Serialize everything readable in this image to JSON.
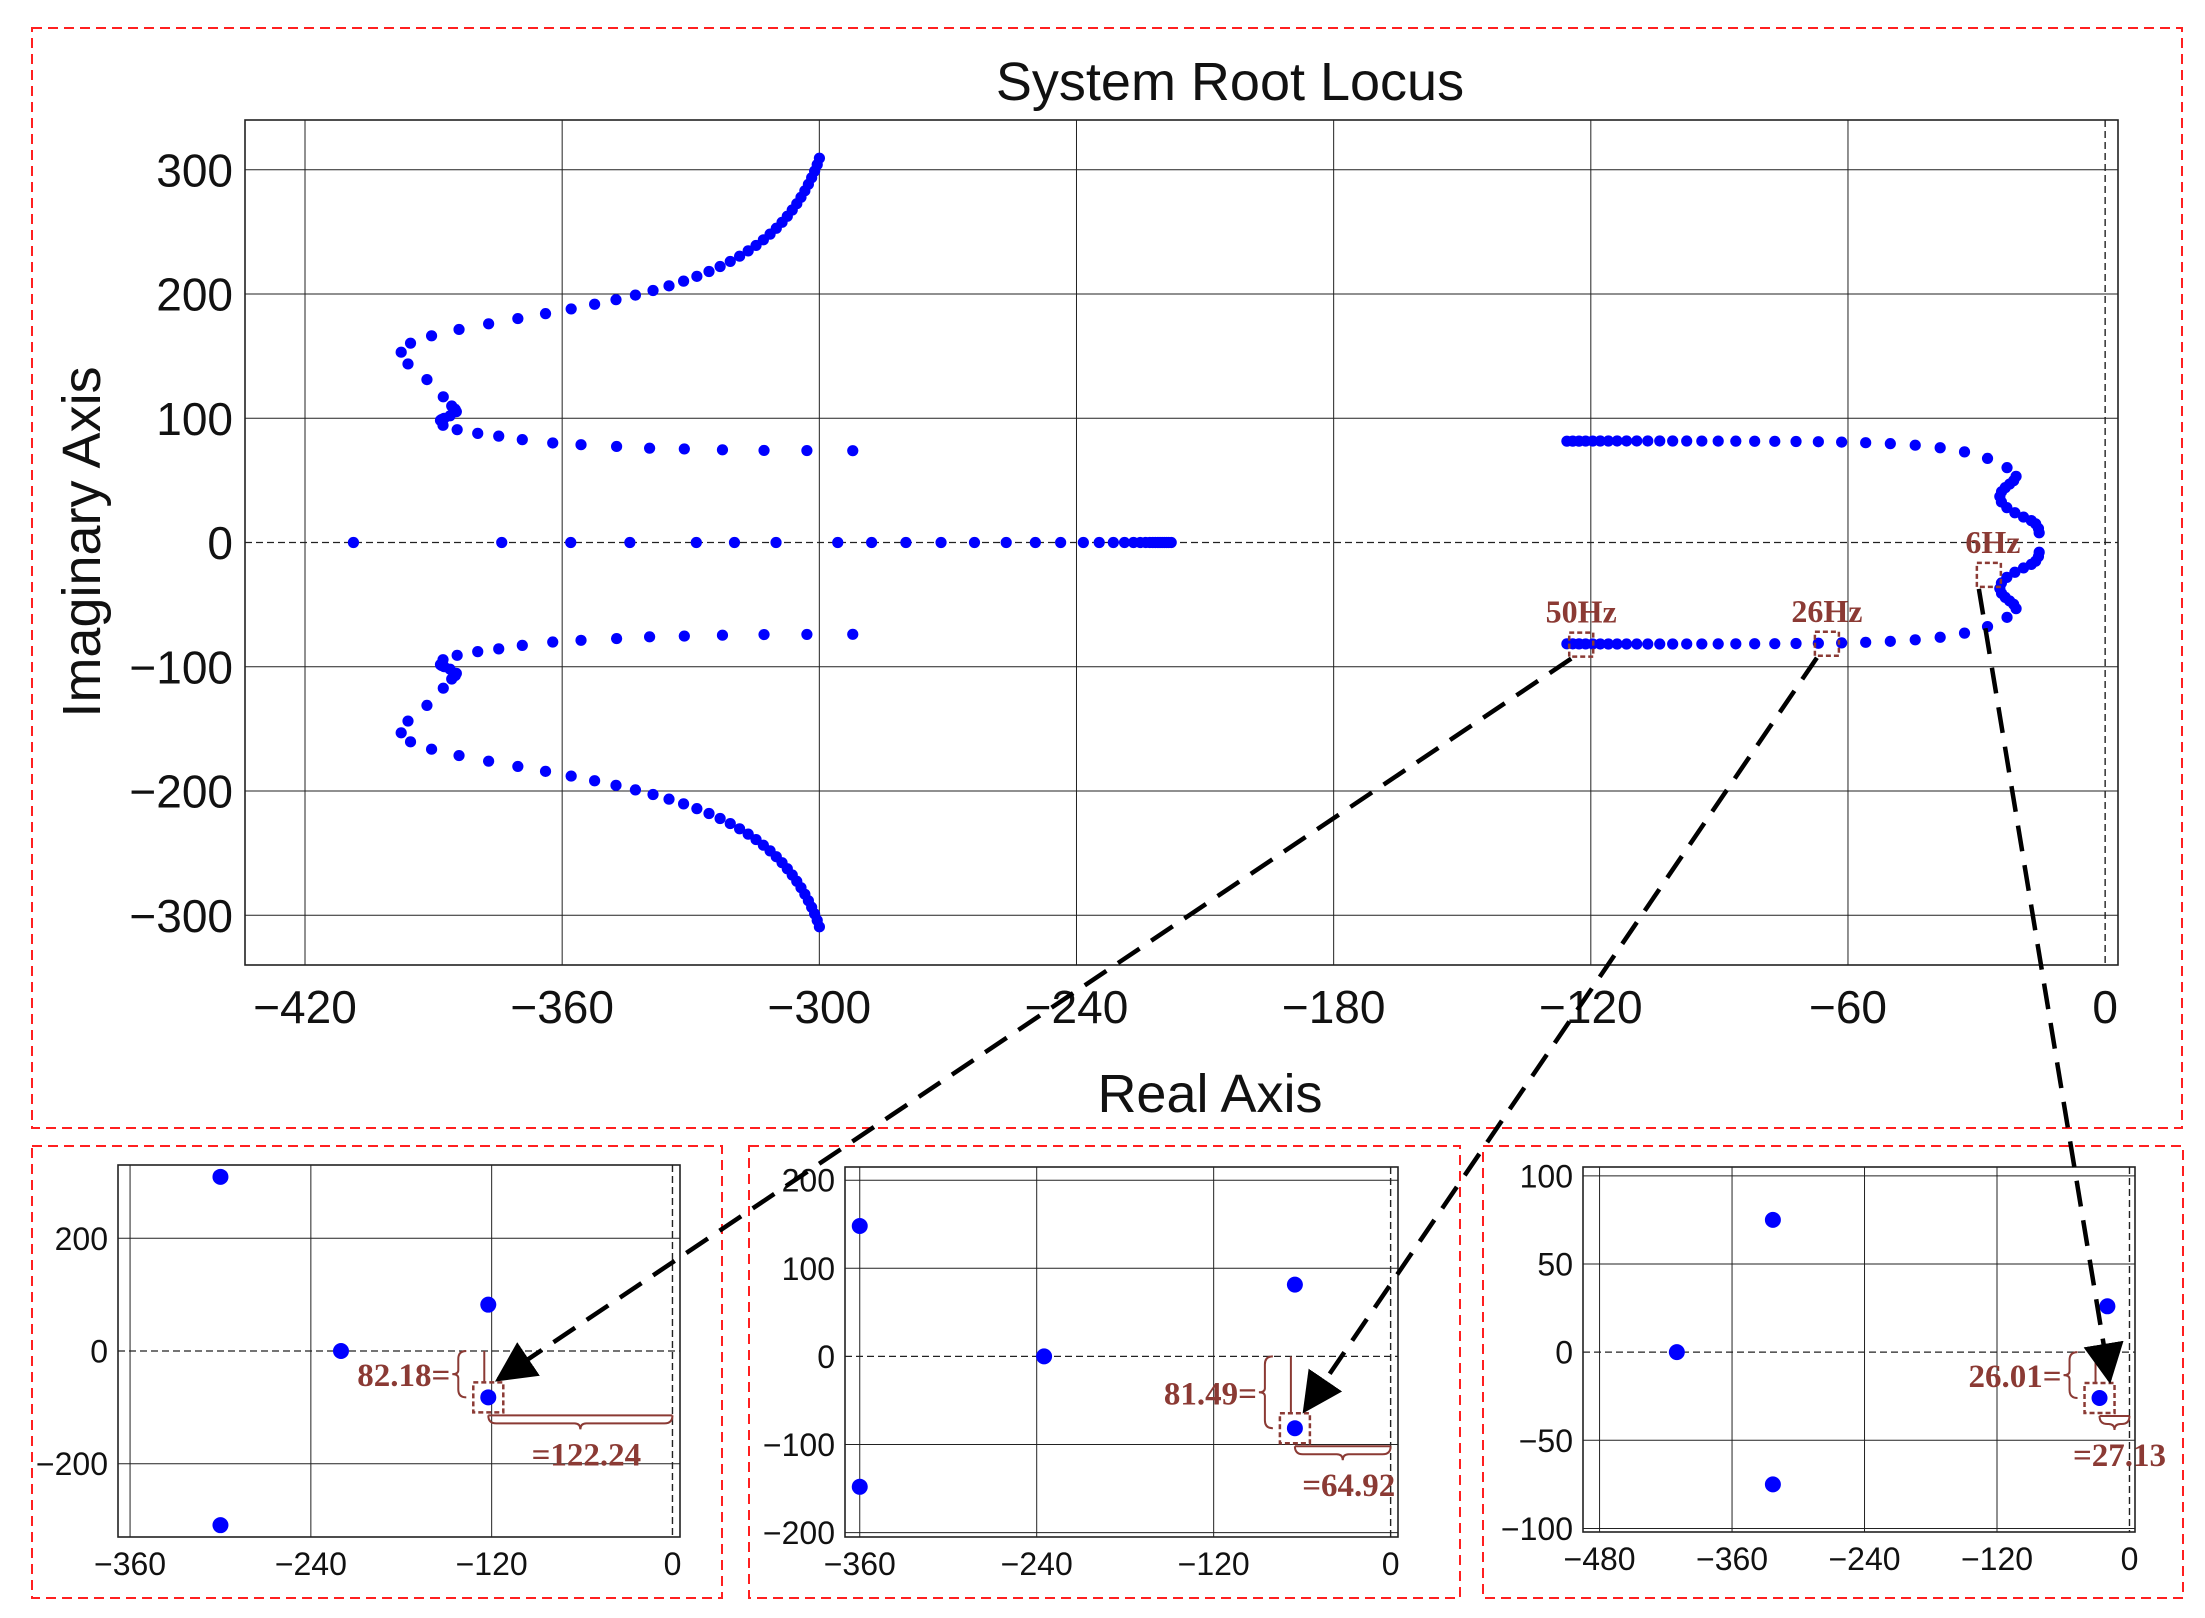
{
  "colors": {
    "points": "#0000ff",
    "frame": "#ff2020",
    "annotation": "#8b3a34",
    "grid": "#222222",
    "arrow": "#000000"
  },
  "chart_data": [
    {
      "id": "main",
      "type": "scatter",
      "title": "System Root Locus",
      "xlabel": "Real Axis",
      "ylabel": "Imaginary Axis",
      "xlim": [
        -434,
        3
      ],
      "ylim": [
        -340,
        340
      ],
      "xticks": [
        -420,
        -360,
        -300,
        -240,
        -180,
        -120,
        -60,
        0
      ],
      "yticks": [
        -300,
        -200,
        -100,
        0,
        100,
        200,
        300
      ],
      "xtick_labels": [
        "−420",
        "−360",
        "−300",
        "−240",
        "−180",
        "−120",
        "−60",
        "0"
      ],
      "ytick_labels": [
        "−300",
        "−200",
        "−100",
        "0",
        "100",
        "200",
        "300"
      ],
      "grid": true,
      "points": [
        [
          -299.98,
          309.28
        ],
        [
          -300.49,
          304.1
        ],
        [
          -301.1,
          298.85
        ],
        [
          -301.79,
          293.55
        ],
        [
          -302.55,
          288.26
        ],
        [
          -303.38,
          283.0
        ],
        [
          -304.28,
          277.79
        ],
        [
          -305.26,
          272.63
        ],
        [
          -306.32,
          267.56
        ],
        [
          -307.47,
          262.56
        ],
        [
          -308.7,
          257.66
        ],
        [
          -310.04,
          252.86
        ],
        [
          -311.49,
          248.16
        ],
        [
          -313.06,
          243.57
        ],
        [
          -314.76,
          239.07
        ],
        [
          -316.6,
          234.68
        ],
        [
          -318.6,
          230.39
        ],
        [
          -320.78,
          226.2
        ],
        [
          -323.15,
          222.11
        ],
        [
          -325.74,
          218.1
        ],
        [
          -328.57,
          214.18
        ],
        [
          -331.67,
          210.33
        ],
        [
          -335.07,
          206.54
        ],
        [
          -338.8,
          202.8
        ],
        [
          -342.91,
          199.1
        ],
        [
          -347.44,
          195.41
        ],
        [
          -352.43,
          191.71
        ],
        [
          -357.9,
          187.97
        ],
        [
          -363.88,
          184.16
        ],
        [
          -370.34,
          180.2
        ],
        [
          -377.16,
          176.0
        ],
        [
          -384.06,
          171.44
        ],
        [
          -390.47,
          166.34
        ],
        [
          -395.38,
          160.4
        ],
        [
          -397.56,
          153.14
        ],
        [
          -395.97,
          143.68
        ],
        [
          -391.55,
          131.09
        ],
        [
          -387.74,
          117.22
        ],
        [
          -385.77,
          109.84
        ],
        [
          -384.95,
          107.11
        ],
        [
          -384.69,
          105.3
        ],
        [
          -386.16,
          101.96
        ],
        [
          -387.53,
          99.93
        ],
        [
          -388.09,
          98.98
        ],
        [
          -388.39,
          98.27
        ],
        [
          -387.8,
          94.3
        ],
        [
          -384.5,
          90.8
        ],
        [
          -379.7,
          87.8
        ],
        [
          -374.8,
          85.6
        ],
        [
          -369.3,
          82.8
        ],
        [
          -362.2,
          80.1
        ],
        [
          -355.6,
          78.7
        ],
        [
          -347.3,
          77.3
        ],
        [
          -339.6,
          75.9
        ],
        [
          -331.5,
          75.3
        ],
        [
          -322.6,
          74.6
        ],
        [
          -312.9,
          74.1
        ],
        [
          -302.9,
          74.0
        ],
        [
          -292.2,
          73.9
        ],
        [
          -299.98,
          -309.28
        ],
        [
          -300.49,
          -304.1
        ],
        [
          -301.1,
          -298.85
        ],
        [
          -301.79,
          -293.55
        ],
        [
          -302.55,
          -288.26
        ],
        [
          -303.38,
          -283.0
        ],
        [
          -304.28,
          -277.79
        ],
        [
          -305.26,
          -272.63
        ],
        [
          -306.32,
          -267.56
        ],
        [
          -307.47,
          -262.56
        ],
        [
          -308.7,
          -257.66
        ],
        [
          -310.04,
          -252.86
        ],
        [
          -311.49,
          -248.16
        ],
        [
          -313.06,
          -243.57
        ],
        [
          -314.76,
          -239.07
        ],
        [
          -316.6,
          -234.68
        ],
        [
          -318.6,
          -230.39
        ],
        [
          -320.78,
          -226.2
        ],
        [
          -323.15,
          -222.11
        ],
        [
          -325.74,
          -218.1
        ],
        [
          -328.57,
          -214.18
        ],
        [
          -331.67,
          -210.33
        ],
        [
          -335.07,
          -206.54
        ],
        [
          -338.8,
          -202.8
        ],
        [
          -342.91,
          -199.1
        ],
        [
          -347.44,
          -195.41
        ],
        [
          -352.43,
          -191.71
        ],
        [
          -357.9,
          -187.97
        ],
        [
          -363.88,
          -184.16
        ],
        [
          -370.34,
          -180.2
        ],
        [
          -377.16,
          -176.0
        ],
        [
          -384.06,
          -171.44
        ],
        [
          -390.47,
          -166.34
        ],
        [
          -395.38,
          -160.4
        ],
        [
          -397.56,
          -153.14
        ],
        [
          -395.97,
          -143.68
        ],
        [
          -391.55,
          -131.09
        ],
        [
          -387.74,
          -117.22
        ],
        [
          -385.77,
          -109.84
        ],
        [
          -384.95,
          -107.11
        ],
        [
          -384.69,
          -105.3
        ],
        [
          -386.16,
          -101.96
        ],
        [
          -387.53,
          -99.93
        ],
        [
          -388.09,
          -98.98
        ],
        [
          -388.39,
          -98.27
        ],
        [
          -387.8,
          -94.3
        ],
        [
          -384.5,
          -90.8
        ],
        [
          -379.7,
          -87.8
        ],
        [
          -374.8,
          -85.6
        ],
        [
          -369.3,
          -82.8
        ],
        [
          -362.2,
          -80.1
        ],
        [
          -355.6,
          -78.7
        ],
        [
          -347.3,
          -77.3
        ],
        [
          -339.6,
          -75.9
        ],
        [
          -331.5,
          -75.3
        ],
        [
          -322.6,
          -74.6
        ],
        [
          -312.9,
          -74.1
        ],
        [
          -302.9,
          -74.0
        ],
        [
          -292.2,
          -73.9
        ],
        [
          -408.7,
          0
        ],
        [
          -374.1,
          0
        ],
        [
          -358.0,
          0
        ],
        [
          -344.2,
          0
        ],
        [
          -328.7,
          0
        ],
        [
          -319.8,
          0
        ],
        [
          -310.1,
          0
        ],
        [
          -295.7,
          0
        ],
        [
          -287.8,
          0
        ],
        [
          -279.8,
          0
        ],
        [
          -271.6,
          0
        ],
        [
          -263.8,
          0
        ],
        [
          -256.4,
          0
        ],
        [
          -249.6,
          0
        ],
        [
          -243.7,
          0
        ],
        [
          -238.4,
          0
        ],
        [
          -234.7,
          0
        ],
        [
          -231.4,
          0
        ],
        [
          -228.8,
          0
        ],
        [
          -226.7,
          0
        ],
        [
          -225.1,
          0
        ],
        [
          -223.9,
          0
        ],
        [
          -222.9,
          0
        ],
        [
          -222.2,
          0
        ],
        [
          -221.6,
          0
        ],
        [
          -221.0,
          0
        ],
        [
          -220.5,
          0
        ],
        [
          -220.0,
          0
        ],
        [
          -219.5,
          0
        ],
        [
          -219.0,
          0
        ],
        [
          -218.5,
          0
        ],
        [
          -217.9,
          0
        ],
        [
          -125.58,
          81.54
        ],
        [
          -124.21,
          81.56
        ],
        [
          -122.75,
          81.59
        ],
        [
          -121.21,
          81.62
        ],
        [
          -119.56,
          81.64
        ],
        [
          -117.8,
          81.66
        ],
        [
          -115.9,
          81.68
        ],
        [
          -113.86,
          81.7
        ],
        [
          -111.66,
          81.71
        ],
        [
          -109.28,
          81.71
        ],
        [
          -106.71,
          81.71
        ],
        [
          -103.92,
          81.7
        ],
        [
          -100.9,
          81.68
        ],
        [
          -97.63,
          81.66
        ],
        [
          -94.1,
          81.63
        ],
        [
          -90.28,
          81.6
        ],
        [
          -86.17,
          81.55
        ],
        [
          -81.77,
          81.49
        ],
        [
          -77.08,
          81.41
        ],
        [
          -72.12,
          81.29
        ],
        [
          -66.91,
          81.1
        ],
        [
          -61.48,
          80.8
        ],
        [
          -55.87,
          80.32
        ],
        [
          -50.12,
          79.55
        ],
        [
          -44.31,
          78.3
        ],
        [
          -38.49,
          76.26
        ],
        [
          -32.81,
          72.92
        ],
        [
          -27.44,
          67.68
        ],
        [
          -22.89,
          60.23
        ],
        [
          -20.78,
          53.2
        ],
        [
          -21.34,
          49.81
        ],
        [
          -22.28,
          47.03
        ],
        [
          -23.3,
          44.17
        ],
        [
          -24.17,
          40.9
        ],
        [
          -24.57,
          37.03
        ],
        [
          -24.2,
          32.61
        ],
        [
          -22.94,
          28.07
        ],
        [
          -21.06,
          23.93
        ],
        [
          -19.04,
          20.47
        ],
        [
          -17.22,
          17.61
        ],
        [
          -16.21,
          15.0
        ],
        [
          -15.56,
          11.3
        ],
        [
          -15.39,
          7.8
        ],
        [
          -125.58,
          -81.54
        ],
        [
          -124.21,
          -81.56
        ],
        [
          -122.75,
          -81.59
        ],
        [
          -121.21,
          -81.62
        ],
        [
          -119.56,
          -81.64
        ],
        [
          -117.8,
          -81.66
        ],
        [
          -115.9,
          -81.68
        ],
        [
          -113.86,
          -81.7
        ],
        [
          -111.66,
          -81.71
        ],
        [
          -109.28,
          -81.71
        ],
        [
          -106.71,
          -81.71
        ],
        [
          -103.92,
          -81.7
        ],
        [
          -100.9,
          -81.68
        ],
        [
          -97.63,
          -81.66
        ],
        [
          -94.1,
          -81.63
        ],
        [
          -90.28,
          -81.6
        ],
        [
          -86.17,
          -81.55
        ],
        [
          -81.77,
          -81.49
        ],
        [
          -77.08,
          -81.41
        ],
        [
          -72.12,
          -81.29
        ],
        [
          -66.91,
          -81.1
        ],
        [
          -61.48,
          -80.8
        ],
        [
          -55.87,
          -80.32
        ],
        [
          -50.12,
          -79.55
        ],
        [
          -44.31,
          -78.3
        ],
        [
          -38.49,
          -76.26
        ],
        [
          -32.81,
          -72.92
        ],
        [
          -27.44,
          -67.68
        ],
        [
          -22.89,
          -60.23
        ],
        [
          -20.78,
          -53.2
        ],
        [
          -21.34,
          -49.81
        ],
        [
          -22.28,
          -47.03
        ],
        [
          -23.3,
          -44.17
        ],
        [
          -24.17,
          -40.9
        ],
        [
          -24.57,
          -37.03
        ],
        [
          -24.2,
          -32.61
        ],
        [
          -22.94,
          -28.07
        ],
        [
          -21.06,
          -23.93
        ],
        [
          -19.04,
          -20.47
        ],
        [
          -17.22,
          -17.61
        ],
        [
          -16.21,
          -15.0
        ],
        [
          -15.56,
          -11.3
        ],
        [
          -15.39,
          -7.8
        ]
      ],
      "highlight_boxes": [
        {
          "label": "50Hz",
          "x": -122.24,
          "y": -82.18
        },
        {
          "label": "26Hz",
          "x": -64.92,
          "y": -81.49
        },
        {
          "label": "6Hz",
          "x": -27.13,
          "y": -26.01
        }
      ]
    },
    {
      "id": "inset-50hz",
      "type": "scatter",
      "xlim": [
        -368,
        5
      ],
      "ylim": [
        -330,
        330
      ],
      "xticks": [
        -360,
        -240,
        -120,
        0
      ],
      "yticks": [
        -200,
        0,
        200
      ],
      "xtick_labels": [
        "−360",
        "−240",
        "−120",
        "0"
      ],
      "ytick_labels": [
        "−200",
        "0",
        "200"
      ],
      "grid": true,
      "points": [
        [
          -300,
          309
        ],
        [
          -300,
          -309
        ],
        [
          -220,
          0
        ],
        [
          -122.24,
          82.18
        ],
        [
          -122.24,
          -82.18
        ]
      ],
      "highlight": {
        "x": -122.24,
        "y": -82.18
      },
      "annotations": {
        "imag_label": "82.18=",
        "real_label": "=122.24"
      }
    },
    {
      "id": "inset-26hz",
      "type": "scatter",
      "xlim": [
        -370,
        5
      ],
      "ylim": [
        -205,
        215
      ],
      "xticks": [
        -360,
        -240,
        -120,
        0
      ],
      "yticks": [
        -200,
        -100,
        0,
        100,
        200
      ],
      "xtick_labels": [
        "−360",
        "−240",
        "−120",
        "0"
      ],
      "ytick_labels": [
        "−200",
        "−100",
        "0",
        "100",
        "200"
      ],
      "grid": true,
      "points": [
        [
          -360,
          148
        ],
        [
          -360,
          -148
        ],
        [
          -235,
          0
        ],
        [
          -64.92,
          81.49
        ],
        [
          -64.92,
          -81.49
        ]
      ],
      "highlight": {
        "x": -64.92,
        "y": -81.49
      },
      "annotations": {
        "imag_label": "81.49=",
        "real_label": "=64.92"
      }
    },
    {
      "id": "inset-6hz",
      "type": "scatter",
      "xlim": [
        -495,
        5
      ],
      "ylim": [
        -102,
        105
      ],
      "xticks": [
        -480,
        -360,
        -240,
        -120,
        0
      ],
      "yticks": [
        -100,
        -50,
        0,
        50,
        100
      ],
      "xtick_labels": [
        "−480",
        "−360",
        "−240",
        "−120",
        "0"
      ],
      "ytick_labels": [
        "−100",
        "−50",
        "0",
        "50",
        "100"
      ],
      "grid": true,
      "points": [
        [
          -410,
          0
        ],
        [
          -323,
          75
        ],
        [
          -323,
          -75
        ],
        [
          -20,
          26
        ],
        [
          -27.13,
          -26.01
        ]
      ],
      "highlight": {
        "x": -27.13,
        "y": -26.01
      },
      "annotations": {
        "imag_label": "26.01=",
        "real_label": "=27.13"
      }
    }
  ]
}
